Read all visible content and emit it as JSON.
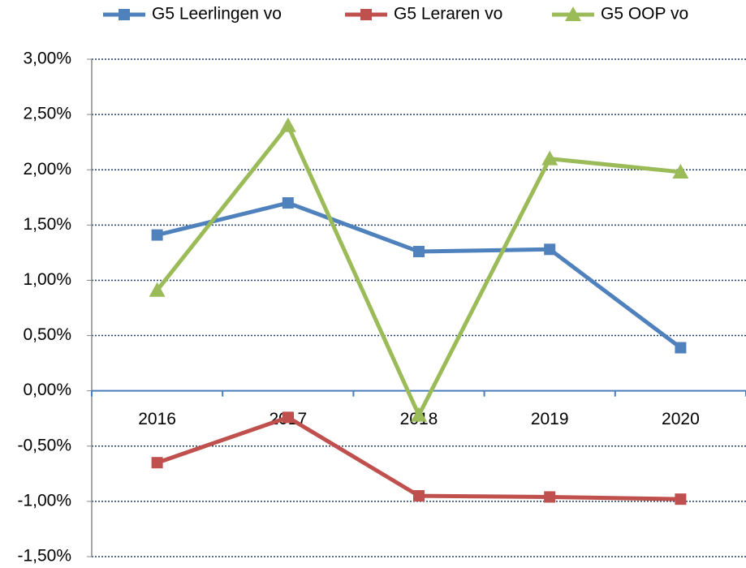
{
  "chart_data": {
    "type": "line",
    "categories": [
      "2016",
      "2017",
      "2018",
      "2019",
      "2020"
    ],
    "series": [
      {
        "name": "G5 Leerlingen vo",
        "color": "#4f81bd",
        "marker": "square",
        "values": [
          1.41,
          1.7,
          1.26,
          1.28,
          0.39
        ]
      },
      {
        "name": "G5 Leraren vo",
        "color": "#c0504d",
        "marker": "square",
        "values": [
          -0.65,
          -0.24,
          -0.95,
          -0.96,
          -0.98
        ]
      },
      {
        "name": "G5 OOP vo",
        "color": "#9bbb59",
        "marker": "triangle",
        "values": [
          0.91,
          2.4,
          -0.22,
          2.1,
          1.98
        ]
      }
    ],
    "ylim": [
      -1.5,
      3
    ],
    "yticks": [
      {
        "value": 3,
        "label": "3,00%"
      },
      {
        "value": 2.5,
        "label": "2,50%"
      },
      {
        "value": 2,
        "label": "2,00%"
      },
      {
        "value": 1.5,
        "label": "1,50%"
      },
      {
        "value": 1,
        "label": "1,00%"
      },
      {
        "value": 0.5,
        "label": "0,50%"
      },
      {
        "value": 0,
        "label": "0,00%"
      },
      {
        "value": -0.5,
        "label": "-0,50%"
      },
      {
        "value": -1,
        "label": "-1,00%"
      },
      {
        "value": -1.5,
        "label": "-1,50%"
      }
    ],
    "grid": true,
    "legend": "top"
  }
}
